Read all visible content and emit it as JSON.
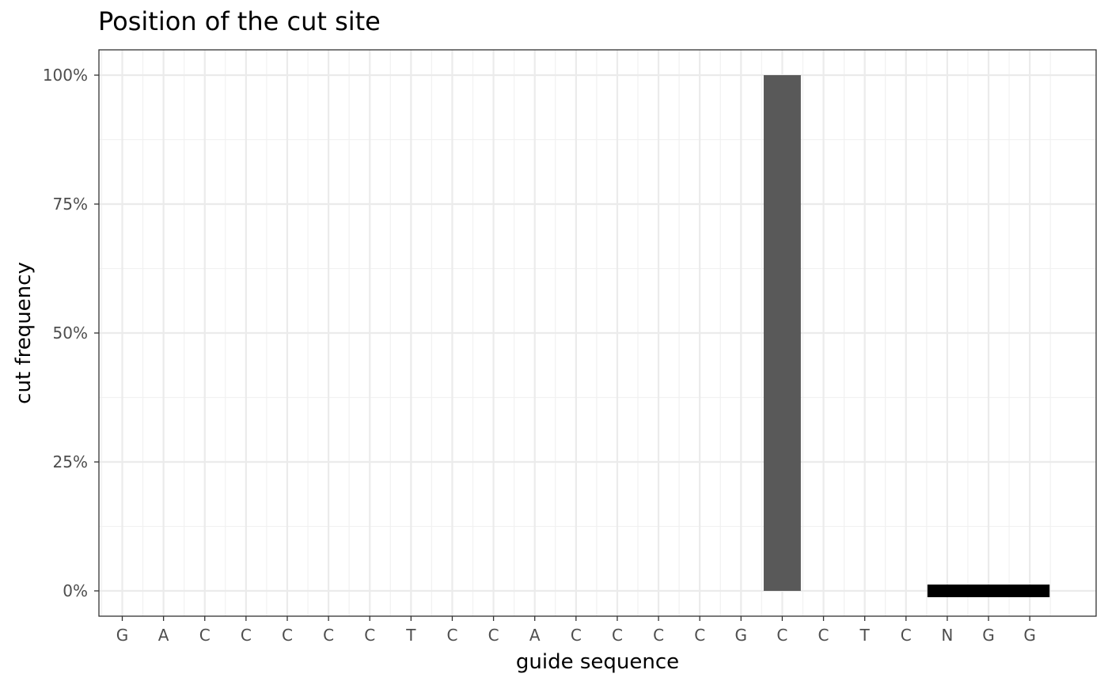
{
  "chart_data": {
    "type": "bar",
    "title": "Position of the cut site",
    "xlabel": "guide sequence",
    "ylabel": "cut frequency",
    "categories": [
      "G",
      "A",
      "C",
      "C",
      "C",
      "C",
      "C",
      "T",
      "C",
      "C",
      "A",
      "C",
      "C",
      "C",
      "C",
      "G",
      "C",
      "C",
      "T",
      "C",
      "N",
      "G",
      "G"
    ],
    "values": [
      0,
      0,
      0,
      0,
      0,
      0,
      0,
      0,
      0,
      0,
      0,
      0,
      0,
      0,
      0,
      0,
      1.0,
      0,
      0,
      0,
      0,
      0,
      0
    ],
    "y_ticks": [
      0,
      0.25,
      0.5,
      0.75,
      1.0
    ],
    "y_tick_labels": [
      "0%",
      "25%",
      "50%",
      "75%",
      "100%"
    ],
    "ylim": [
      -0.05,
      1.05
    ],
    "pam": {
      "start_index": 20,
      "end_index": 22,
      "value": 0
    },
    "grid": true,
    "bar_color": "#595959",
    "pam_color": "#000000"
  }
}
